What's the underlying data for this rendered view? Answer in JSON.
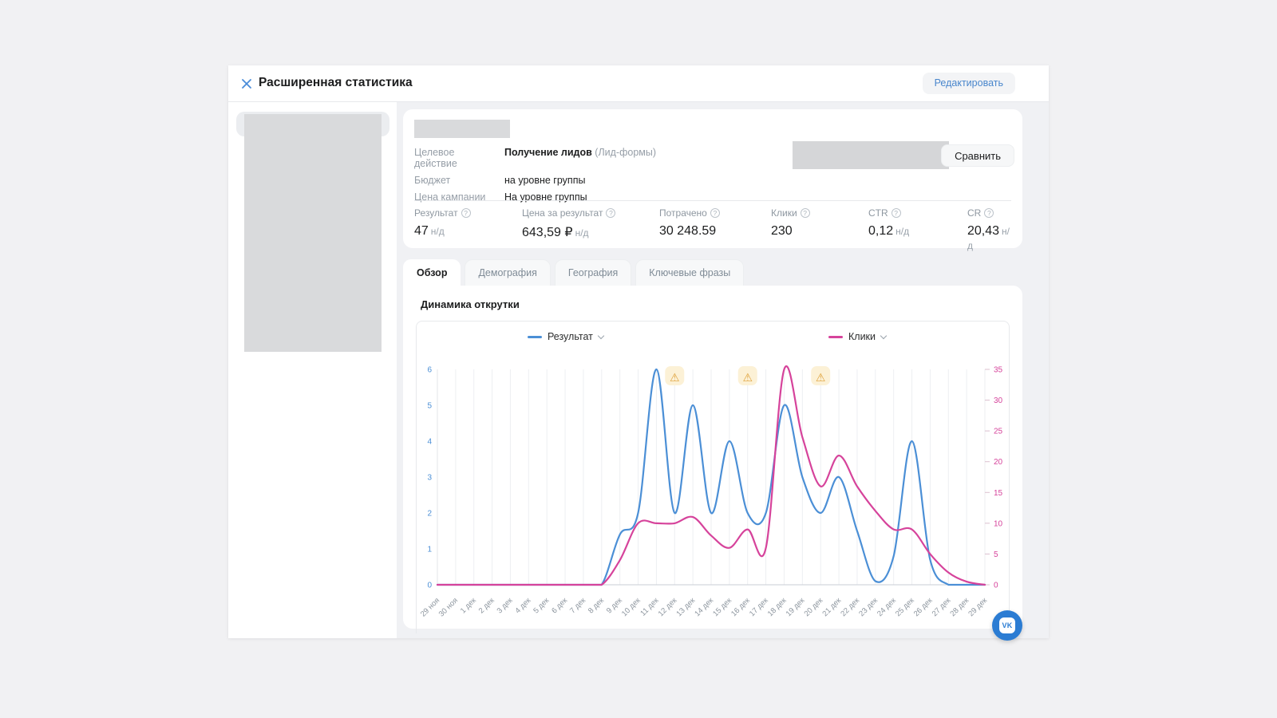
{
  "window": {
    "title": "Расширенная статистика",
    "edit_button": "Редактировать"
  },
  "campaign": {
    "details": [
      {
        "label": "Целевое действие",
        "value": "Получение лидов",
        "note": "(Лид-формы)"
      },
      {
        "label": "Бюджет",
        "value": "на уровне группы",
        "note": ""
      },
      {
        "label": "Цена кампании",
        "value": "На уровне группы",
        "note": ""
      }
    ],
    "compare_button": "Сравнить",
    "stats": [
      {
        "label": "Результат",
        "value": "47",
        "suffix": "н/д"
      },
      {
        "label": "Цена за результат",
        "value": "643,59 ₽",
        "suffix": "н/д"
      },
      {
        "label": "Потрачено",
        "value": "30 248.59",
        "suffix": ""
      },
      {
        "label": "Клики",
        "value": "230",
        "suffix": ""
      },
      {
        "label": "CTR",
        "value": "0,12",
        "suffix": "н/д"
      },
      {
        "label": "CR",
        "value": "20,43",
        "suffix": "н/д"
      }
    ]
  },
  "tabs": [
    {
      "label": "Обзор",
      "active": true
    },
    {
      "label": "Демография",
      "active": false
    },
    {
      "label": "География",
      "active": false
    },
    {
      "label": "Ключевые фразы",
      "active": false
    }
  ],
  "section_title": "Динамика открутки",
  "chart_data": {
    "type": "line",
    "title": "Динамика открутки",
    "x": [
      "29 ноя",
      "30 ноя",
      "1 дек",
      "2 дек",
      "3 дек",
      "4 дек",
      "5 дек",
      "6 дек",
      "7 дек",
      "8 дек",
      "9 дек",
      "10 дек",
      "11 дек",
      "12 дек",
      "13 дек",
      "14 дек",
      "15 дек",
      "16 дек",
      "17 дек",
      "18 дек",
      "19 дек",
      "20 дек",
      "21 дек",
      "22 дек",
      "23 дек",
      "24 дек",
      "25 дек",
      "26 дек",
      "27 дек",
      "28 дек",
      "29 дек"
    ],
    "series": [
      {
        "name": "Результат",
        "axis": "left",
        "color": "#4b8fd6",
        "values": [
          0,
          0,
          0,
          0,
          0,
          0,
          0,
          0,
          0,
          0,
          1.4,
          2,
          6,
          2,
          5,
          2,
          4,
          2,
          2,
          5,
          3,
          2,
          3,
          1.5,
          0.1,
          0.8,
          4,
          0.7,
          0,
          0,
          0
        ]
      },
      {
        "name": "Клики",
        "axis": "right",
        "color": "#d6439b",
        "values": [
          0,
          0,
          0,
          0,
          0,
          0,
          0,
          0,
          0,
          0,
          4,
          10,
          10,
          10,
          11,
          8,
          6,
          9,
          6,
          35,
          24,
          16,
          21,
          16,
          12,
          9,
          9,
          5,
          2,
          0.5,
          0
        ]
      }
    ],
    "left_axis": {
      "min": 0,
      "max": 6,
      "ticks": [
        0,
        1,
        2,
        3,
        4,
        5,
        6
      ]
    },
    "right_axis": {
      "min": 0,
      "max": 35,
      "ticks": [
        0,
        5,
        10,
        15,
        20,
        25,
        30,
        35
      ]
    },
    "warning_days": [
      "12 дек",
      "16 дек",
      "20 дек"
    ],
    "legend": [
      {
        "name": "Результат",
        "color": "#4b8fd6"
      },
      {
        "name": "Клики",
        "color": "#d6439b"
      }
    ],
    "grid": "vertical",
    "legend_position": "top"
  },
  "colors": {
    "accent_blue": "#4a8cd9",
    "link_blue": "#4986cc",
    "line_blue": "#4b8fd6",
    "line_pink": "#d6439b",
    "warning_bg": "#fcf1d6",
    "warning_icon": "#dfa23c"
  },
  "vk_badge": "VK"
}
